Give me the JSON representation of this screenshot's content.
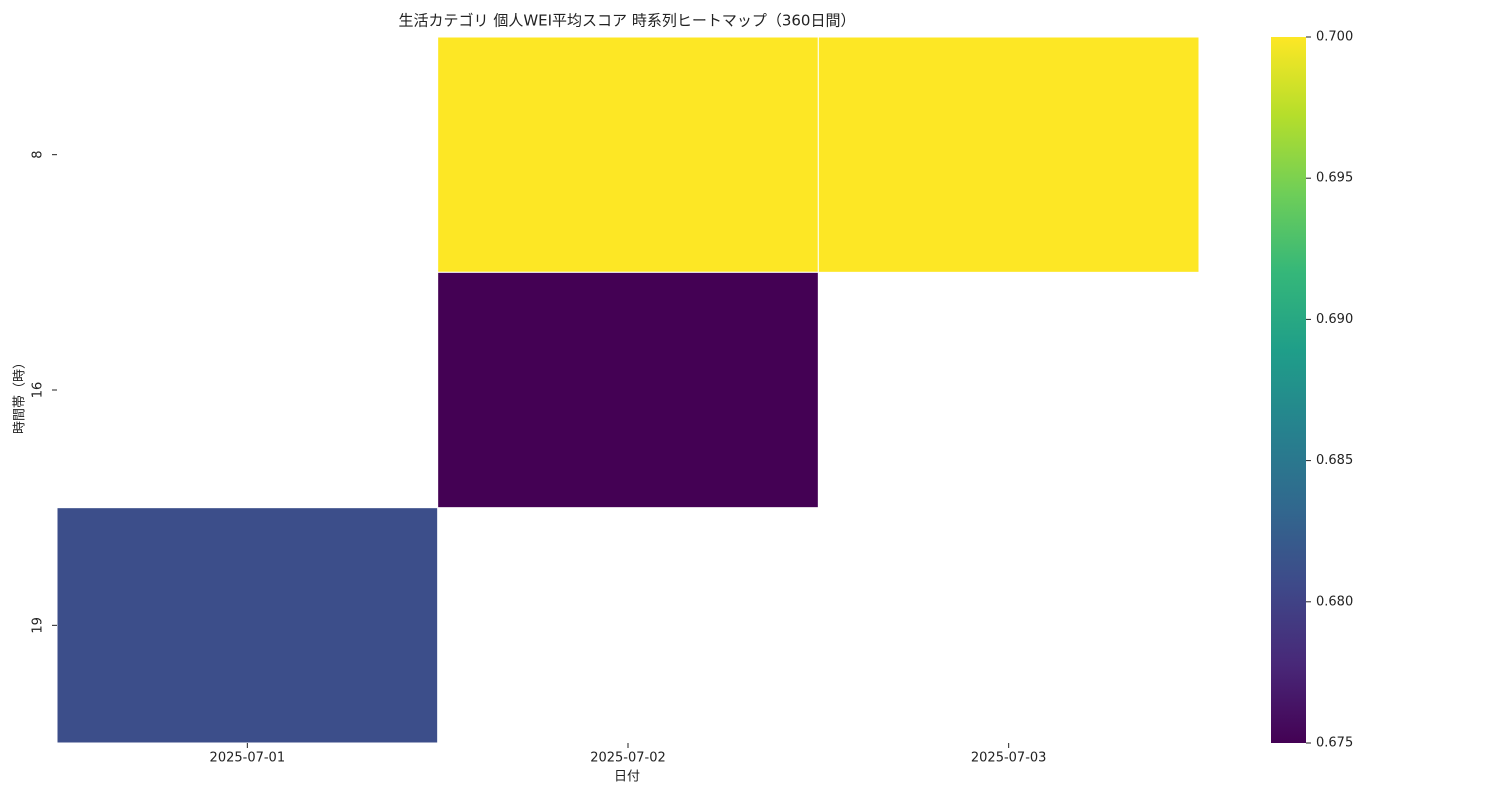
{
  "chart_data": {
    "type": "heatmap",
    "title": "生活カテゴリ 個人WEI平均スコア 時系列ヒートマップ（360日間）",
    "x_label": "日付",
    "y_label": "時間帯（時）",
    "x_categories": [
      "2025-07-01",
      "2025-07-02",
      "2025-07-03"
    ],
    "y_categories": [
      "8",
      "16",
      "19"
    ],
    "values": [
      [
        null,
        0.7,
        0.7
      ],
      [
        null,
        0.675,
        null
      ],
      [
        0.681,
        null,
        null
      ]
    ],
    "colormap": "viridis",
    "zlim": [
      0.675,
      0.7
    ],
    "zticks": [
      0.675,
      {
        "value": 0.68,
        "label": "0.680"
      },
      0.685,
      {
        "value": 0.69,
        "label": "0.690"
      },
      0.695,
      {
        "value": 0.7,
        "label": "0.700"
      }
    ]
  }
}
